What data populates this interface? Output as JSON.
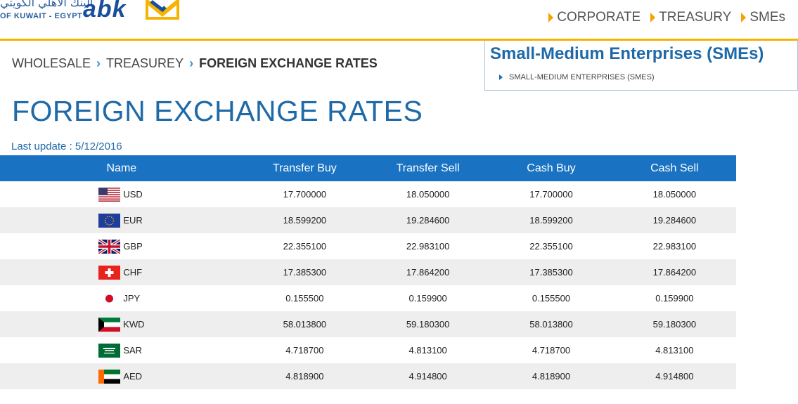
{
  "header": {
    "logo_arabic": "البنك الأهلي الكويتي",
    "logo_sub": "OF KUWAIT - EGYPT",
    "logo_word": "ABK",
    "nav": [
      {
        "label": "CORPORATE"
      },
      {
        "label": "TREASURY"
      },
      {
        "label": "SMEs"
      }
    ],
    "accent": "#f5b400",
    "brand": "#1e6aa8"
  },
  "breadcrumb": {
    "items": [
      "WHOLESALE",
      "TREASUREY"
    ],
    "current": "FOREIGN EXCHANGE RATES"
  },
  "sidebox": {
    "title": "Small-Medium Enterprises (SMEs)",
    "link": "SMALL-MEDIUM ENTERPRISES (SMES)"
  },
  "page": {
    "title": "FOREIGN EXCHANGE RATES",
    "last_update": "Last update : 5/12/2016"
  },
  "table": {
    "headers": [
      "Name",
      "Transfer Buy",
      "Transfer Sell",
      "Cash Buy",
      "Cash Sell"
    ],
    "rows": [
      {
        "code": "USD",
        "flag": "us-flag-icon",
        "tbuy": "17.700000",
        "tsell": "18.050000",
        "cbuy": "17.700000",
        "csell": "18.050000"
      },
      {
        "code": "EUR",
        "flag": "eu-flag-icon",
        "tbuy": "18.599200",
        "tsell": "19.284600",
        "cbuy": "18.599200",
        "csell": "19.284600"
      },
      {
        "code": "GBP",
        "flag": "uk-flag-icon",
        "tbuy": "22.355100",
        "tsell": "22.983100",
        "cbuy": "22.355100",
        "csell": "22.983100"
      },
      {
        "code": "CHF",
        "flag": "swiss-flag-icon",
        "tbuy": "17.385300",
        "tsell": "17.864200",
        "cbuy": "17.385300",
        "csell": "17.864200"
      },
      {
        "code": "JPY",
        "flag": "japan-flag-icon",
        "tbuy": "0.155500",
        "tsell": "0.159900",
        "cbuy": "0.155500",
        "csell": "0.159900"
      },
      {
        "code": "KWD",
        "flag": "kuwait-flag-icon",
        "tbuy": "58.013800",
        "tsell": "59.180300",
        "cbuy": "58.013800",
        "csell": "59.180300"
      },
      {
        "code": "SAR",
        "flag": "saudi-flag-icon",
        "tbuy": "4.718700",
        "tsell": "4.813100",
        "cbuy": "4.718700",
        "csell": "4.813100"
      },
      {
        "code": "AED",
        "flag": "uae-flag-icon",
        "tbuy": "4.818900",
        "tsell": "4.914800",
        "cbuy": "4.818900",
        "csell": "4.914800"
      }
    ]
  }
}
